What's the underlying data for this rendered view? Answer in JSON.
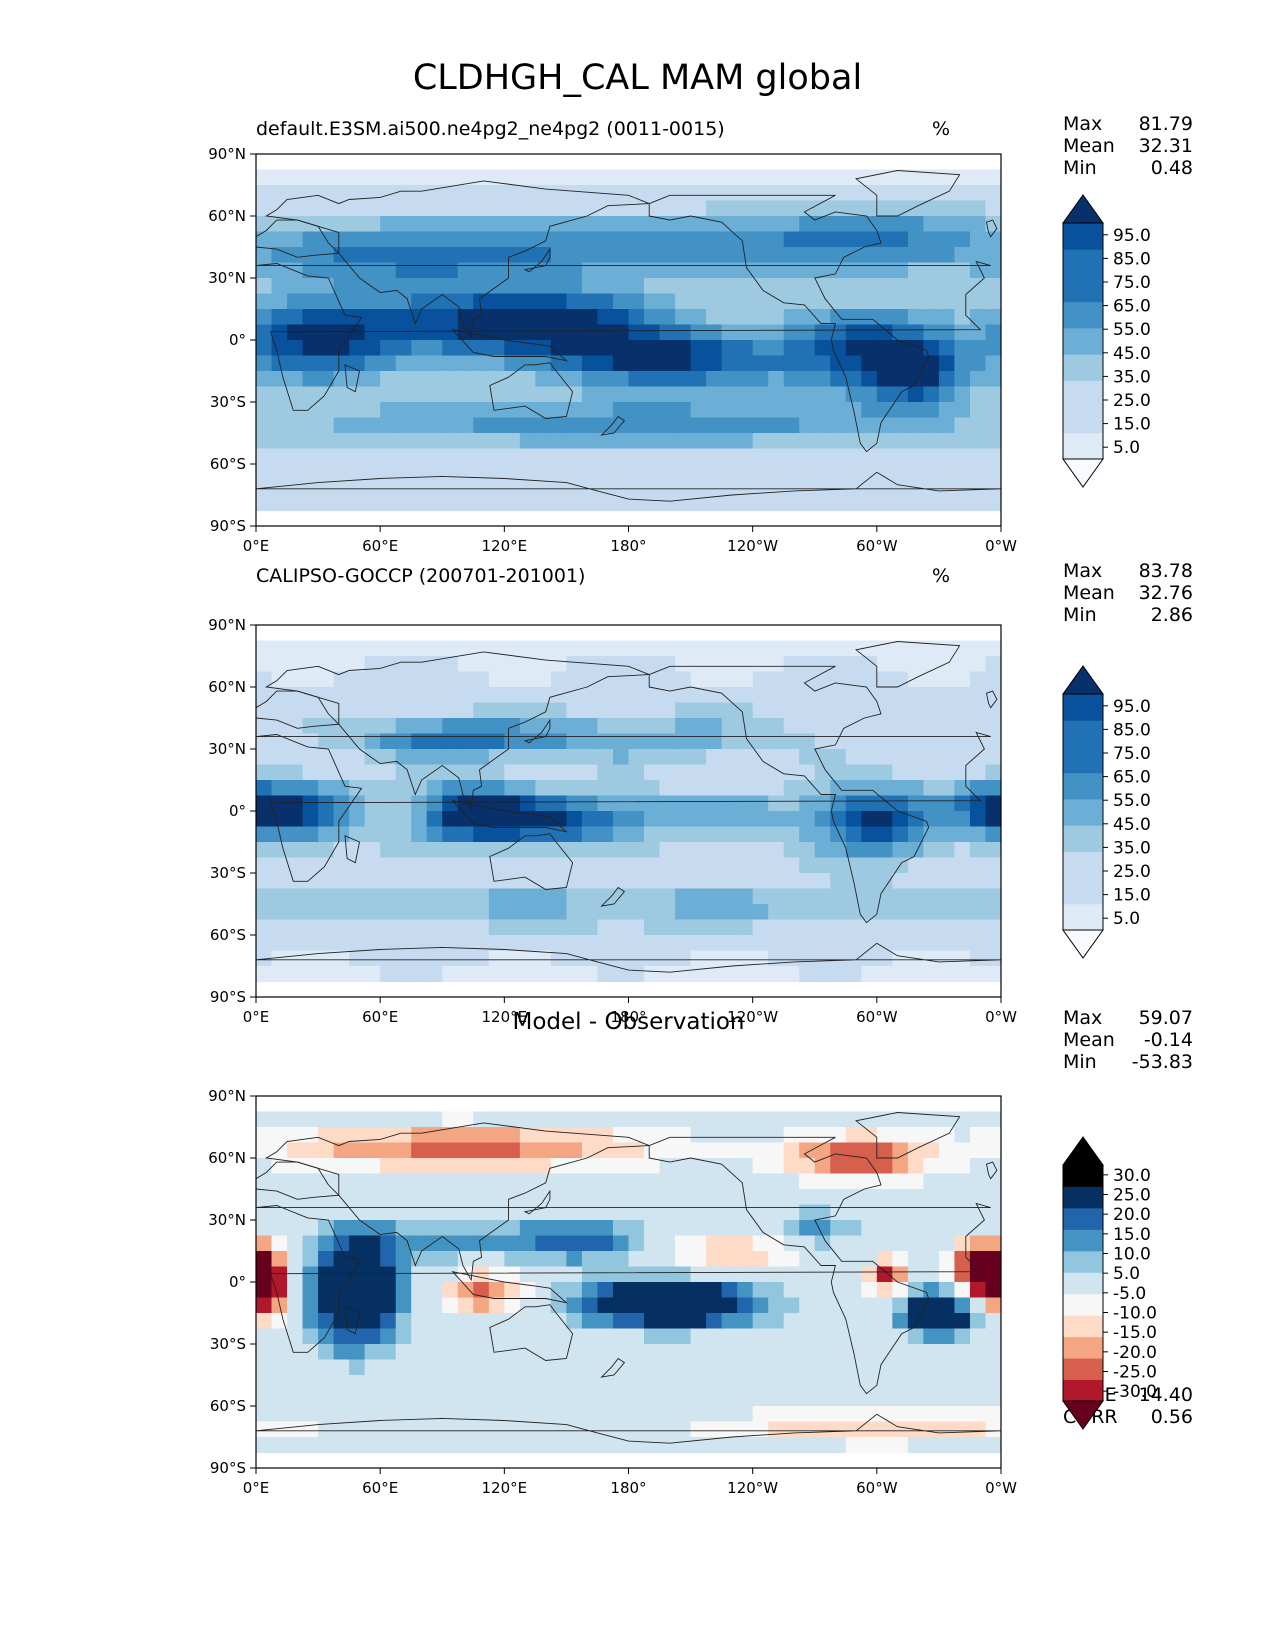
{
  "figure": {
    "title": "CLDHGH_CAL MAM global"
  },
  "colors": {
    "blues": [
      "#f7fbff",
      "#deebf7",
      "#c6dbef",
      "#9ecae1",
      "#6baed6",
      "#4292c6",
      "#2171b5",
      "#08519c",
      "#08306b"
    ],
    "diverging": [
      "#67001f",
      "#b2182b",
      "#d6604d",
      "#f4a582",
      "#fddbc7",
      "#f7f7f7",
      "#d1e5f0",
      "#92c5de",
      "#4393c3",
      "#2166ac",
      "#053061"
    ],
    "coast": "#222222"
  },
  "chart_data": [
    {
      "type": "heatmap",
      "name": "model",
      "subtitle": "default.E3SM.ai500.ne4pg2_ne4pg2 (0011-0015)",
      "units": "%",
      "stats": {
        "max_label": "Max",
        "max": "81.79",
        "mean_label": "Mean",
        "mean": "32.31",
        "min_label": "Min",
        "min": "0.48"
      },
      "colorbar": {
        "levels": [
          5,
          15,
          25,
          35,
          45,
          55,
          65,
          75,
          85,
          95
        ],
        "labels": [
          "5.0",
          "15.0",
          "25.0",
          "35.0",
          "45.0",
          "55.0",
          "65.0",
          "75.0",
          "85.0",
          "95.0"
        ]
      },
      "x_ticks": [
        "0°E",
        "60°E",
        "120°E",
        "180°",
        "120°W",
        "60°W",
        "0°W"
      ],
      "y_ticks": [
        "90°N",
        "60°N",
        "30°N",
        "0°",
        "30°S",
        "60°S",
        "90°S"
      ],
      "xlim": [
        0,
        360
      ],
      "ylim": [
        -90,
        90
      ],
      "features": [
        {
          "lon": 30,
          "lat": 0,
          "value": 72,
          "slon": 25,
          "slat": 14
        },
        {
          "lon": 100,
          "lat": 10,
          "value": 58,
          "slon": 40,
          "slat": 12
        },
        {
          "lon": 150,
          "lat": 8,
          "value": 65,
          "slon": 35,
          "slat": 12
        },
        {
          "lon": 200,
          "lat": -10,
          "value": 70,
          "slon": 35,
          "slat": 10
        },
        {
          "lon": 290,
          "lat": -5,
          "value": 65,
          "slon": 25,
          "slat": 15
        },
        {
          "lon": 320,
          "lat": -15,
          "value": 70,
          "slon": 15,
          "slat": 12
        },
        {
          "lon": 180,
          "lat": -40,
          "value": 52,
          "slon": 120,
          "slat": 8
        },
        {
          "lon": 180,
          "lat": 45,
          "value": 50,
          "slon": 90,
          "slat": 10
        },
        {
          "lon": 60,
          "lat": 40,
          "value": 48,
          "slon": 50,
          "slat": 10
        },
        {
          "lon": 300,
          "lat": 50,
          "value": 45,
          "slon": 40,
          "slat": 10
        }
      ],
      "baseline": 20
    },
    {
      "type": "heatmap",
      "name": "observation",
      "subtitle": "CALIPSO-GOCCP (200701-201001)",
      "units": "%",
      "stats": {
        "max_label": "Max",
        "max": "83.78",
        "mean_label": "Mean",
        "mean": "32.76",
        "min_label": "Min",
        "min": "2.86"
      },
      "colorbar": {
        "levels": [
          5,
          15,
          25,
          35,
          45,
          55,
          65,
          75,
          85,
          95
        ],
        "labels": [
          "5.0",
          "15.0",
          "25.0",
          "35.0",
          "45.0",
          "55.0",
          "65.0",
          "75.0",
          "85.0",
          "95.0"
        ]
      },
      "x_ticks": [
        "0°E",
        "60°E",
        "120°E",
        "180°",
        "120°W",
        "60°W",
        "0°W"
      ],
      "y_ticks": [
        "90°N",
        "60°N",
        "30°N",
        "0°",
        "30°S",
        "60°S",
        "90°S"
      ],
      "xlim": [
        0,
        360
      ],
      "ylim": [
        -90,
        90
      ],
      "features": [
        {
          "lon": 20,
          "lat": 0,
          "value": 70,
          "slon": 18,
          "slat": 10
        },
        {
          "lon": 105,
          "lat": 0,
          "value": 68,
          "slon": 18,
          "slat": 10
        },
        {
          "lon": 140,
          "lat": -5,
          "value": 62,
          "slon": 30,
          "slat": 8
        },
        {
          "lon": 300,
          "lat": -5,
          "value": 68,
          "slon": 20,
          "slat": 12
        },
        {
          "lon": 355,
          "lat": 2,
          "value": 58,
          "slon": 12,
          "slat": 8
        },
        {
          "lon": 90,
          "lat": 35,
          "value": 55,
          "slon": 30,
          "slat": 6
        },
        {
          "lon": 175,
          "lat": 35,
          "value": 42,
          "slon": 60,
          "slat": 8
        },
        {
          "lon": 210,
          "lat": 0,
          "value": 32,
          "slon": 60,
          "slat": 6
        },
        {
          "lon": 180,
          "lat": -45,
          "value": 38,
          "slon": 150,
          "slat": 8
        }
      ],
      "baseline": 18
    },
    {
      "type": "heatmap",
      "name": "difference",
      "title": "Model - Observation",
      "stats": {
        "max_label": "Max",
        "max": "59.07",
        "mean_label": "Mean",
        "mean": "-0.14",
        "min_label": "Min",
        "min": "-53.83"
      },
      "fit": {
        "rmse_label": "RMSE",
        "rmse": "14.40",
        "corr_label": "CORR",
        "corr": "0.56"
      },
      "colorbar": {
        "levels": [
          -30,
          -25,
          -20,
          -15,
          -10,
          -5,
          5,
          10,
          15,
          20,
          25,
          30
        ],
        "labels": [
          "-30.0",
          "-25.0",
          "-20.0",
          "-15.0",
          "-10.0",
          "-5.0",
          "5.0",
          "10.0",
          "15.0",
          "20.0",
          "25.0",
          "30.0"
        ]
      },
      "x_ticks": [
        "0°E",
        "60°E",
        "120°E",
        "180°",
        "120°W",
        "60°W",
        "0°W"
      ],
      "y_ticks": [
        "90°N",
        "60°N",
        "30°N",
        "0°",
        "30°S",
        "60°S",
        "90°S"
      ],
      "xlim": [
        0,
        360
      ],
      "ylim": [
        -90,
        90
      ],
      "features": [
        {
          "lon": 48,
          "lat": -5,
          "value": 40,
          "slon": 15,
          "slat": 18
        },
        {
          "lon": 200,
          "lat": -10,
          "value": 42,
          "slon": 30,
          "slat": 8
        },
        {
          "lon": 330,
          "lat": -15,
          "value": 38,
          "slon": 12,
          "slat": 8
        },
        {
          "lon": 160,
          "lat": 20,
          "value": 18,
          "slon": 25,
          "slat": 8
        },
        {
          "lon": 270,
          "lat": 25,
          "value": 15,
          "slon": 15,
          "slat": 7
        },
        {
          "lon": 90,
          "lat": 20,
          "value": 12,
          "slon": 30,
          "slat": 8
        },
        {
          "lon": 5,
          "lat": 0,
          "value": -35,
          "slon": 8,
          "slat": 12
        },
        {
          "lon": 350,
          "lat": 5,
          "value": -38,
          "slon": 10,
          "slat": 10
        },
        {
          "lon": 305,
          "lat": 3,
          "value": -30,
          "slon": 6,
          "slat": 6
        },
        {
          "lon": 110,
          "lat": -5,
          "value": -22,
          "slon": 15,
          "slat": 8
        },
        {
          "lon": 100,
          "lat": 65,
          "value": -22,
          "slon": 70,
          "slat": 8
        },
        {
          "lon": 290,
          "lat": 60,
          "value": -25,
          "slon": 25,
          "slat": 8
        },
        {
          "lon": 230,
          "lat": 15,
          "value": -15,
          "slon": 30,
          "slat": 8
        },
        {
          "lon": 300,
          "lat": -70,
          "value": -15,
          "slon": 60,
          "slat": 6
        }
      ],
      "baseline": 0
    }
  ]
}
